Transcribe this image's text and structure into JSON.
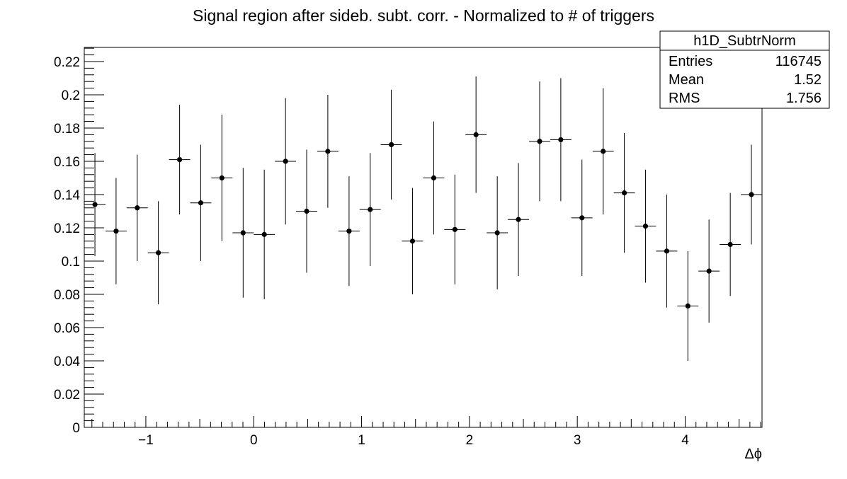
{
  "chart_data": {
    "type": "scatter",
    "title": "Signal region after sideb. subt. corr. - Normalized to # of triggers",
    "xlabel": "Δϕ",
    "ylabel": "",
    "xlim": [
      -1.5708,
      4.7124
    ],
    "ylim": [
      0,
      0.2285
    ],
    "grid": false,
    "x_ticks": [
      -1,
      0,
      1,
      2,
      3,
      4
    ],
    "x_tick_labels": [
      "−1",
      "0",
      "1",
      "2",
      "3",
      "4"
    ],
    "y_ticks": [
      0,
      0.02,
      0.04,
      0.06,
      0.08,
      0.1,
      0.12,
      0.14,
      0.16,
      0.18,
      0.2,
      0.22
    ],
    "y_tick_labels": [
      "0",
      "0.02",
      "0.04",
      "0.06",
      "0.08",
      "0.1",
      "0.12",
      "0.14",
      "0.16",
      "0.18",
      "0.2",
      "0.22"
    ],
    "bin_half_width": 0.0982,
    "series": [
      {
        "x": [
          -1.472,
          -1.276,
          -1.08,
          -0.884,
          -0.687,
          -0.491,
          -0.295,
          -0.098,
          0.098,
          0.295,
          0.491,
          0.687,
          0.884,
          1.08,
          1.276,
          1.472,
          1.669,
          1.865,
          2.061,
          2.258,
          2.454,
          2.651,
          2.847,
          3.043,
          3.24,
          3.436,
          3.632,
          3.829,
          4.025,
          4.221,
          4.418,
          4.614
        ],
        "y": [
          0.134,
          0.118,
          0.132,
          0.105,
          0.161,
          0.135,
          0.15,
          0.117,
          0.116,
          0.16,
          0.13,
          0.166,
          0.118,
          0.131,
          0.17,
          0.112,
          0.15,
          0.119,
          0.176,
          0.117,
          0.125,
          0.172,
          0.173,
          0.126,
          0.166,
          0.141,
          0.121,
          0.106,
          0.073,
          0.094,
          0.11,
          0.14
        ],
        "err": [
          0.031,
          0.032,
          0.032,
          0.031,
          0.033,
          0.035,
          0.038,
          0.039,
          0.039,
          0.038,
          0.037,
          0.034,
          0.033,
          0.034,
          0.033,
          0.032,
          0.034,
          0.033,
          0.035,
          0.034,
          0.034,
          0.036,
          0.037,
          0.035,
          0.038,
          0.036,
          0.034,
          0.034,
          0.033,
          0.031,
          0.031,
          0.03
        ]
      }
    ],
    "stats_box": {
      "title": "h1D_SubtrNorm",
      "rows": [
        {
          "label": "Entries",
          "value": "116745"
        },
        {
          "label": "Mean",
          "value": "1.52"
        },
        {
          "label": "RMS",
          "value": "1.756"
        }
      ]
    }
  }
}
